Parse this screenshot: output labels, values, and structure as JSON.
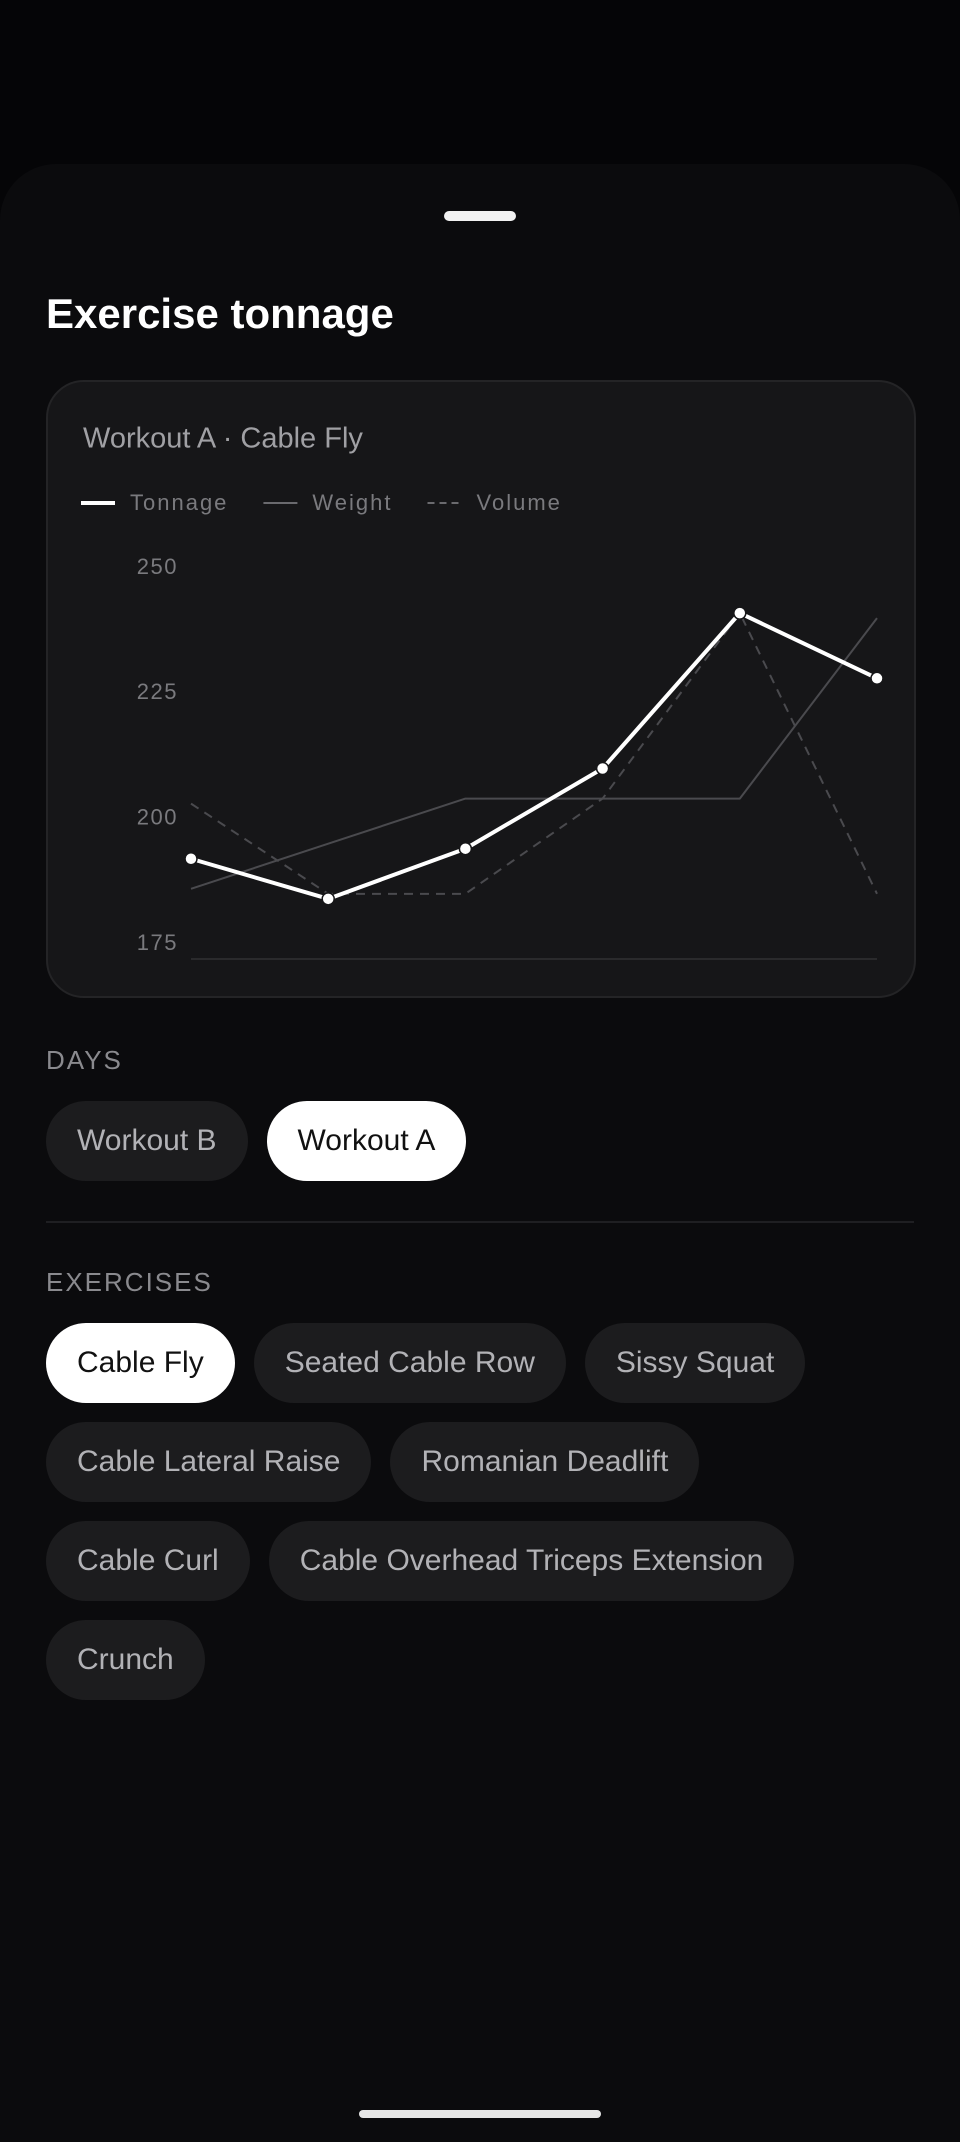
{
  "header": {
    "title": "Exercise tonnage"
  },
  "chart_data": {
    "type": "line",
    "title": "Workout A · Cable Fly",
    "categories": [
      null,
      null,
      null,
      null,
      null,
      null
    ],
    "series": [
      {
        "name": "Tonnage",
        "color": "#ffffff",
        "style": "solid",
        "markers": true,
        "values": [
          192,
          184,
          194,
          210,
          241,
          228
        ]
      },
      {
        "name": "Weight",
        "color": "#4a4a4e",
        "style": "solid",
        "markers": false,
        "values": [
          186,
          195,
          204,
          204,
          204,
          240
        ]
      },
      {
        "name": "Volume",
        "color": "#4a4a4e",
        "style": "dashed",
        "markers": false,
        "values": [
          203,
          185,
          185,
          204,
          241,
          185
        ]
      }
    ],
    "ylim": [
      172,
      250
    ],
    "yticks": [
      175,
      200,
      225,
      250
    ],
    "grid": false,
    "legend": "top"
  },
  "days": {
    "label": "DAYS",
    "selected_index": 1,
    "items": [
      "Workout B",
      "Workout A"
    ]
  },
  "exercises": {
    "label": "EXERCISES",
    "selected_index": 0,
    "items": [
      "Cable Fly",
      "Seated Cable Row",
      "Sissy Squat",
      "Cable Lateral Raise",
      "Romanian Deadlift",
      "Cable Curl",
      "Cable Overhead Triceps Extension",
      "Crunch"
    ]
  }
}
